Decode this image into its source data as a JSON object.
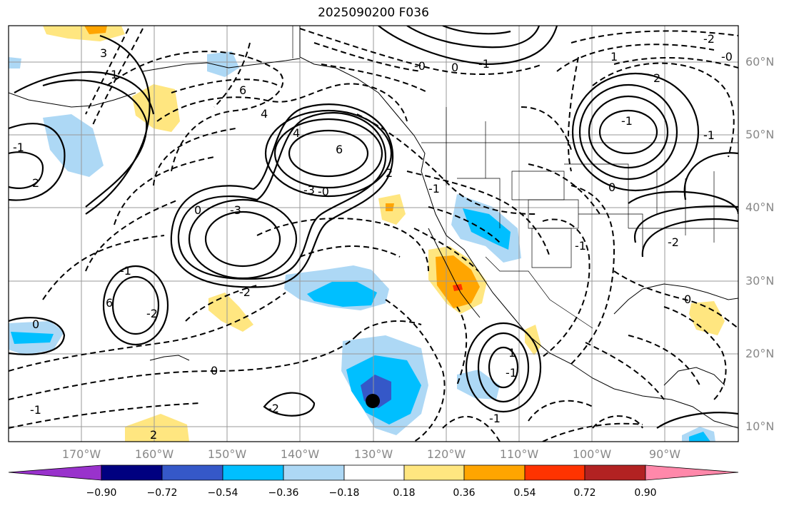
{
  "title": "2025090200 F036",
  "map": {
    "projection": "Lat/Lon",
    "lon_range": [
      -180,
      -80
    ],
    "lat_range": [
      8,
      65
    ],
    "lat_labels": [
      "60°N",
      "50°N",
      "40°N",
      "30°N",
      "20°N",
      "10°N"
    ],
    "lon_labels": [
      "170°W",
      "160°W",
      "150°W",
      "140°W",
      "130°W",
      "120°W",
      "110°W",
      "100°W",
      "90°W"
    ],
    "contour_labels": [
      "3",
      "2",
      "-1",
      "1",
      "4",
      "0",
      "6",
      "-3",
      "-0",
      "4",
      "6",
      "-3",
      "-2",
      "-1",
      "6",
      "-1",
      "0",
      "-2",
      "0",
      "-1",
      "2",
      "-2",
      "1",
      "-1",
      "-1",
      "2",
      "-0",
      "0",
      "-1",
      "1",
      "2",
      "-0",
      "-1",
      "0",
      "-2",
      "-1",
      "-1",
      "-2",
      "0"
    ],
    "storm_marker": {
      "lon": -130.5,
      "lat": 13.0,
      "label": "cyclone center"
    }
  },
  "colorbar": {
    "ticks": [
      "−0.90",
      "−0.72",
      "−0.54",
      "−0.36",
      "−0.18",
      "0.18",
      "0.36",
      "0.54",
      "0.72",
      "0.90"
    ],
    "colors": [
      "#9932cc",
      "#000080",
      "#3558c8",
      "#00bfff",
      "#add8f5",
      "#ffffff",
      "#ffe680",
      "#ffa500",
      "#ff3300",
      "#b22222",
      "#ff88aa"
    ]
  }
}
